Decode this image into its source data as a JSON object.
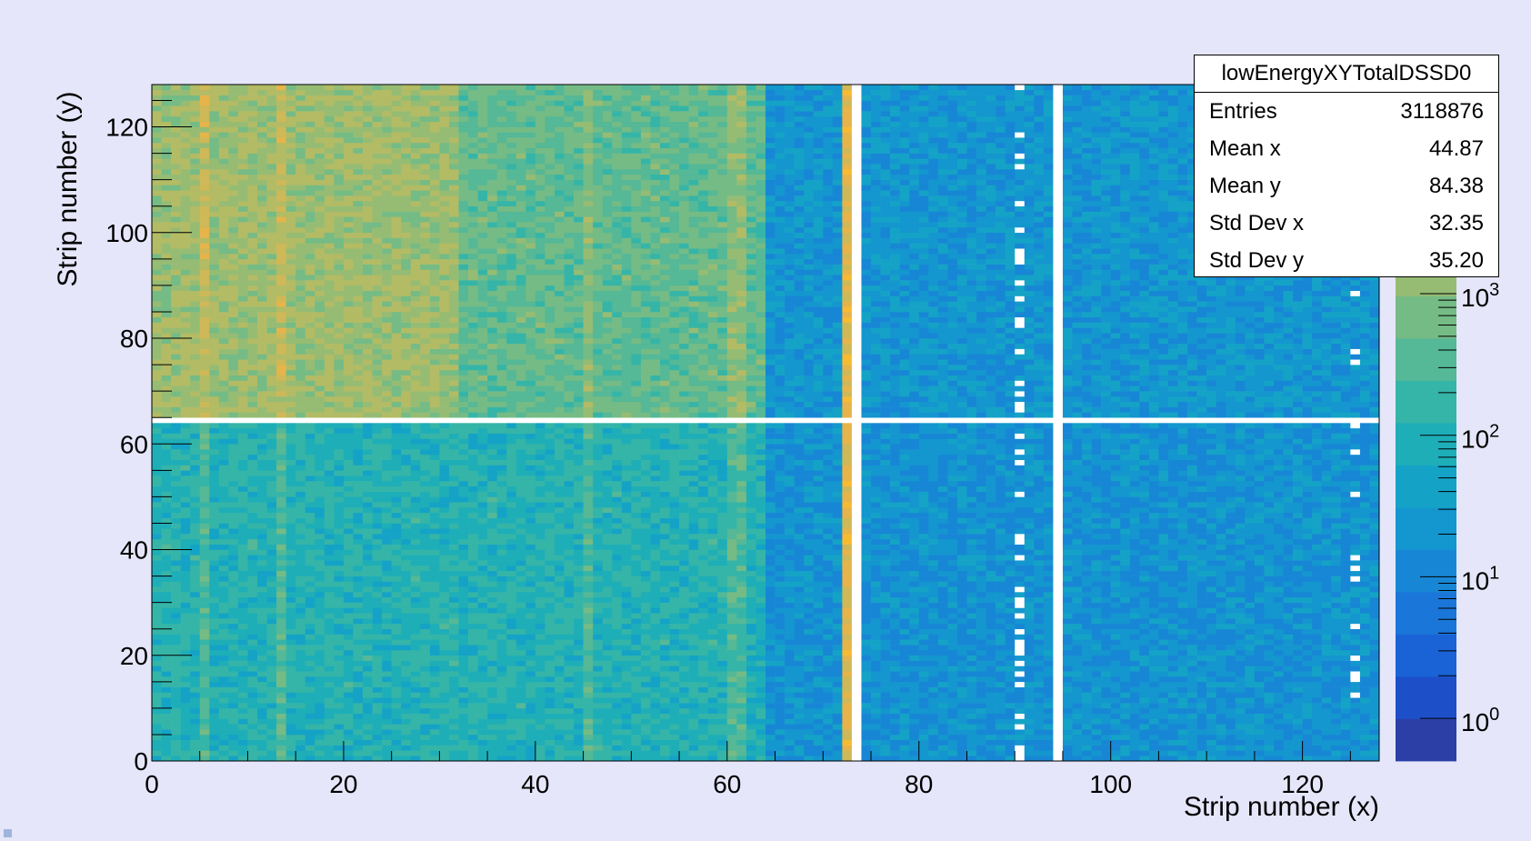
{
  "chart_data": {
    "type": "heatmap",
    "title": "",
    "xlabel": "Strip number (x)",
    "ylabel": "Strip number (y)",
    "xlim": [
      0,
      128
    ],
    "ylim": [
      0,
      128
    ],
    "x_ticks": [
      "0",
      "20",
      "40",
      "60",
      "80",
      "100",
      "120"
    ],
    "y_ticks": [
      "0",
      "20",
      "40",
      "60",
      "80",
      "100",
      "120"
    ],
    "color_scale": "log",
    "colorbar_ticks": [
      {
        "base": "10",
        "exp": "0",
        "value": 1
      },
      {
        "base": "10",
        "exp": "1",
        "value": 10
      },
      {
        "base": "10",
        "exp": "2",
        "value": 100
      },
      {
        "base": "10",
        "exp": "3",
        "value": 1000
      }
    ],
    "colorbar_range": [
      0.5,
      30000
    ],
    "palette": [
      "#2b3fa6",
      "#1d4fc9",
      "#1a63d6",
      "#1a76d8",
      "#1787d5",
      "#1496cf",
      "#14a3c6",
      "#1eaeb8",
      "#35b5a7",
      "#55b896",
      "#75bb85",
      "#96bc74",
      "#b3bb64",
      "#cfb857",
      "#e6b44a",
      "#f7bb33"
    ],
    "regions": [
      {
        "x": [
          0,
          32
        ],
        "y": [
          64,
          128
        ],
        "value": 1600
      },
      {
        "x": [
          32,
          64
        ],
        "y": [
          64,
          128
        ],
        "value": 450
      },
      {
        "x": [
          0,
          64
        ],
        "y": [
          0,
          64
        ],
        "value": 110
      },
      {
        "x": [
          64,
          128
        ],
        "y": [
          64,
          128
        ],
        "value": 22
      },
      {
        "x": [
          64,
          128
        ],
        "y": [
          0,
          64
        ],
        "value": 18
      }
    ],
    "hot_columns": [
      {
        "x": 72,
        "value": 9000
      }
    ],
    "empty_columns": [
      73,
      94
    ],
    "empty_rows": [
      64
    ],
    "sparse_columns": [
      90,
      125
    ]
  },
  "stats": {
    "title": "lowEnergyXYTotalDSSD0",
    "rows": [
      {
        "label": "Entries",
        "value": "3118876"
      },
      {
        "label": "Mean x",
        "value": "44.87"
      },
      {
        "label": "Mean y",
        "value": "84.38"
      },
      {
        "label": "Std Dev x",
        "value": "32.35"
      },
      {
        "label": "Std Dev y",
        "value": "35.20"
      }
    ]
  },
  "colors": {
    "background": "#e6e6fa",
    "empty_bin": "#ffffff"
  }
}
